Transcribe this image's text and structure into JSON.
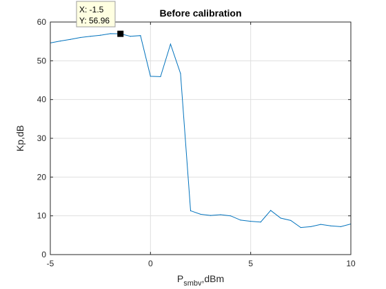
{
  "chart_data": {
    "type": "line",
    "title": "Before calibration",
    "xlabel": "P",
    "xlabel_sub": "smbv",
    "xlabel_suffix": ",dBm",
    "ylabel": "Kp,dB",
    "xlim": [
      -5,
      10
    ],
    "ylim": [
      0,
      60
    ],
    "xticks": [
      "-5",
      "0",
      "5",
      "10"
    ],
    "yticks": [
      "0",
      "10",
      "20",
      "30",
      "40",
      "50",
      "60"
    ],
    "grid": true,
    "line_color": "#0072BD",
    "series": [
      {
        "x": [
          -5,
          -4.5,
          -4,
          -3.5,
          -3,
          -2.5,
          -2,
          -1.5,
          -1,
          -0.5,
          0,
          0.5,
          1,
          1.5,
          2,
          2.5,
          3,
          3.5,
          4,
          4.5,
          5,
          5.5,
          6,
          6.5,
          7,
          7.5,
          8,
          8.5,
          9,
          9.5,
          10
        ],
        "y": [
          54.6,
          55.1,
          55.5,
          56.0,
          56.3,
          56.6,
          57.0,
          56.96,
          56.3,
          56.5,
          46.0,
          45.9,
          54.3,
          46.7,
          11.3,
          10.4,
          10.1,
          10.3,
          10.0,
          8.9,
          8.6,
          8.4,
          11.4,
          9.4,
          8.8,
          7.0,
          7.2,
          7.8,
          7.4,
          7.2,
          7.9
        ]
      }
    ],
    "datatip": {
      "line1": "X: -1.5",
      "line2": "Y: 56.96",
      "x": -1.5,
      "y": 56.96
    }
  }
}
